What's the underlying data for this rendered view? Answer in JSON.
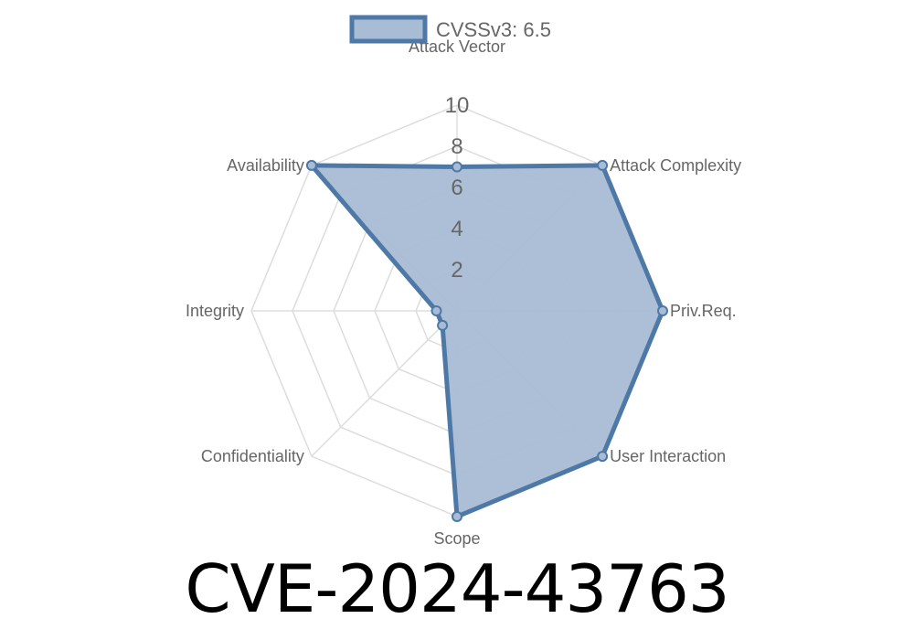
{
  "title": "CVE-2024-43763",
  "chart_data": {
    "type": "radar",
    "categories": [
      "Attack Vector",
      "Attack Complexity",
      "Priv.Req.",
      "User Interaction",
      "Scope",
      "Confidentiality",
      "Integrity",
      "Availability"
    ],
    "series": [
      {
        "name": "CVSSv3: 6.5",
        "values": [
          7,
          10,
          10,
          10,
          10,
          1,
          1,
          10
        ]
      }
    ],
    "rlim": [
      0,
      10
    ],
    "ticks": [
      "2",
      "4",
      "6",
      "8",
      "10"
    ],
    "legend_position": "top",
    "grid": true,
    "colors": {
      "line": "#4e79a7",
      "fill": "#a8bcd5",
      "grid": "#dddddd",
      "label": "#666666"
    }
  }
}
